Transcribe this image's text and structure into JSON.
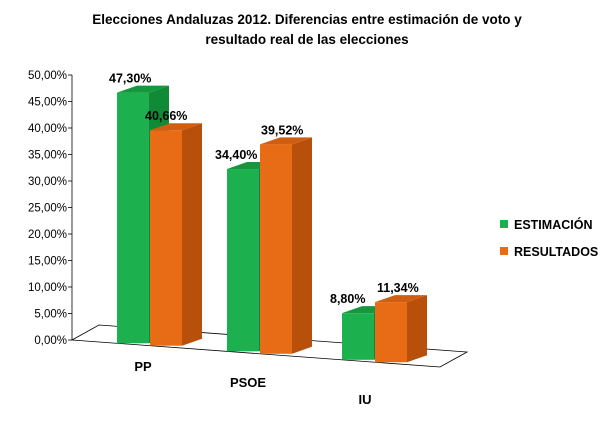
{
  "chart_data": {
    "type": "bar",
    "title_lines": [
      "Elecciones Andaluzas 2012. Diferencias entre estimación de voto y",
      "resultado real de las elecciones"
    ],
    "categories": [
      "PP",
      "PSOE",
      "IU"
    ],
    "series": [
      {
        "name": "ESTIMACIÓN",
        "values": [
          47.3,
          34.4,
          8.8
        ],
        "labels": [
          "47,30%",
          "34,40%",
          "8,80%"
        ]
      },
      {
        "name": "RESULTADOS",
        "values": [
          40.66,
          39.52,
          11.34
        ],
        "labels": [
          "40,66%",
          "39,52%",
          "11,34%"
        ]
      }
    ],
    "ylim": [
      0,
      50
    ],
    "yticks": [
      "0,00%",
      "5,00%",
      "10,00%",
      "15,00%",
      "20,00%",
      "25,00%",
      "30,00%",
      "35,00%",
      "40,00%",
      "45,00%",
      "50,00%"
    ],
    "legend_position": "right",
    "grid": false,
    "colors": {
      "ESTIMACIÓN": {
        "front": "#1db04f",
        "side": "#118a38",
        "top": "#15973f"
      },
      "RESULTADOS": {
        "front": "#e86b16",
        "side": "#b8500c",
        "top": "#cf5e10"
      }
    }
  }
}
